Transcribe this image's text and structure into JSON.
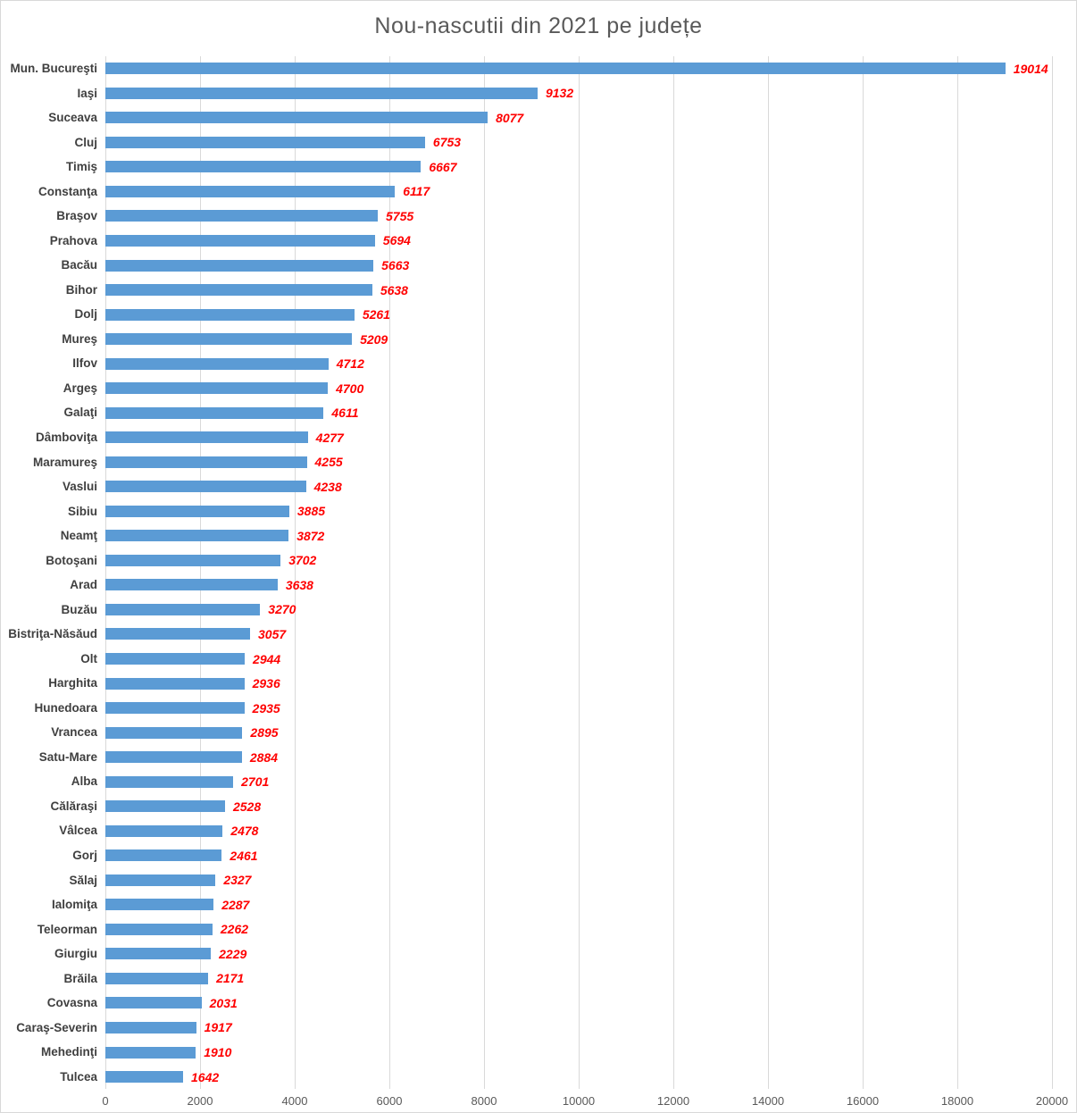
{
  "colors": {
    "bar": "#5b9bd5",
    "value_label": "#ff0000",
    "category_label": "#404040",
    "axis_label": "#595959",
    "gridline": "#d9d9d9",
    "title": "#595959"
  },
  "chart_data": {
    "type": "bar",
    "orientation": "horizontal",
    "title": "Nou-nascutii din 2021 pe județe",
    "categories": [
      "Mun. Bucureşti",
      "Iaşi",
      "Suceava",
      "Cluj",
      "Timiş",
      "Constanţa",
      "Braşov",
      "Prahova",
      "Bacău",
      "Bihor",
      "Dolj",
      "Mureş",
      "Ilfov",
      "Argeş",
      "Galaţi",
      "Dâmboviţa",
      "Maramureş",
      "Vaslui",
      "Sibiu",
      "Neamţ",
      "Botoşani",
      "Arad",
      "Buzău",
      "Bistriţa-Năsăud",
      "Olt",
      "Harghita",
      "Hunedoara",
      "Vrancea",
      "Satu-Mare",
      "Alba",
      "Călăraşi",
      "Vâlcea",
      "Gorj",
      "Sălaj",
      "Ialomiţa",
      "Teleorman",
      "Giurgiu",
      "Brăila",
      "Covasna",
      "Caraş-Severin",
      "Mehedinţi",
      "Tulcea"
    ],
    "values": [
      19014,
      9132,
      8077,
      6753,
      6667,
      6117,
      5755,
      5694,
      5663,
      5638,
      5261,
      5209,
      4712,
      4700,
      4611,
      4277,
      4255,
      4238,
      3885,
      3872,
      3702,
      3638,
      3270,
      3057,
      2944,
      2936,
      2935,
      2895,
      2884,
      2701,
      2528,
      2478,
      2461,
      2327,
      2287,
      2262,
      2229,
      2171,
      2031,
      1917,
      1910,
      1642
    ],
    "xlabel": "",
    "ylabel": "",
    "xlim": [
      0,
      20000
    ],
    "x_ticks": [
      0,
      2000,
      4000,
      6000,
      8000,
      10000,
      12000,
      14000,
      16000,
      18000,
      20000
    ],
    "grid": true,
    "value_labels": true,
    "legend": "none"
  }
}
